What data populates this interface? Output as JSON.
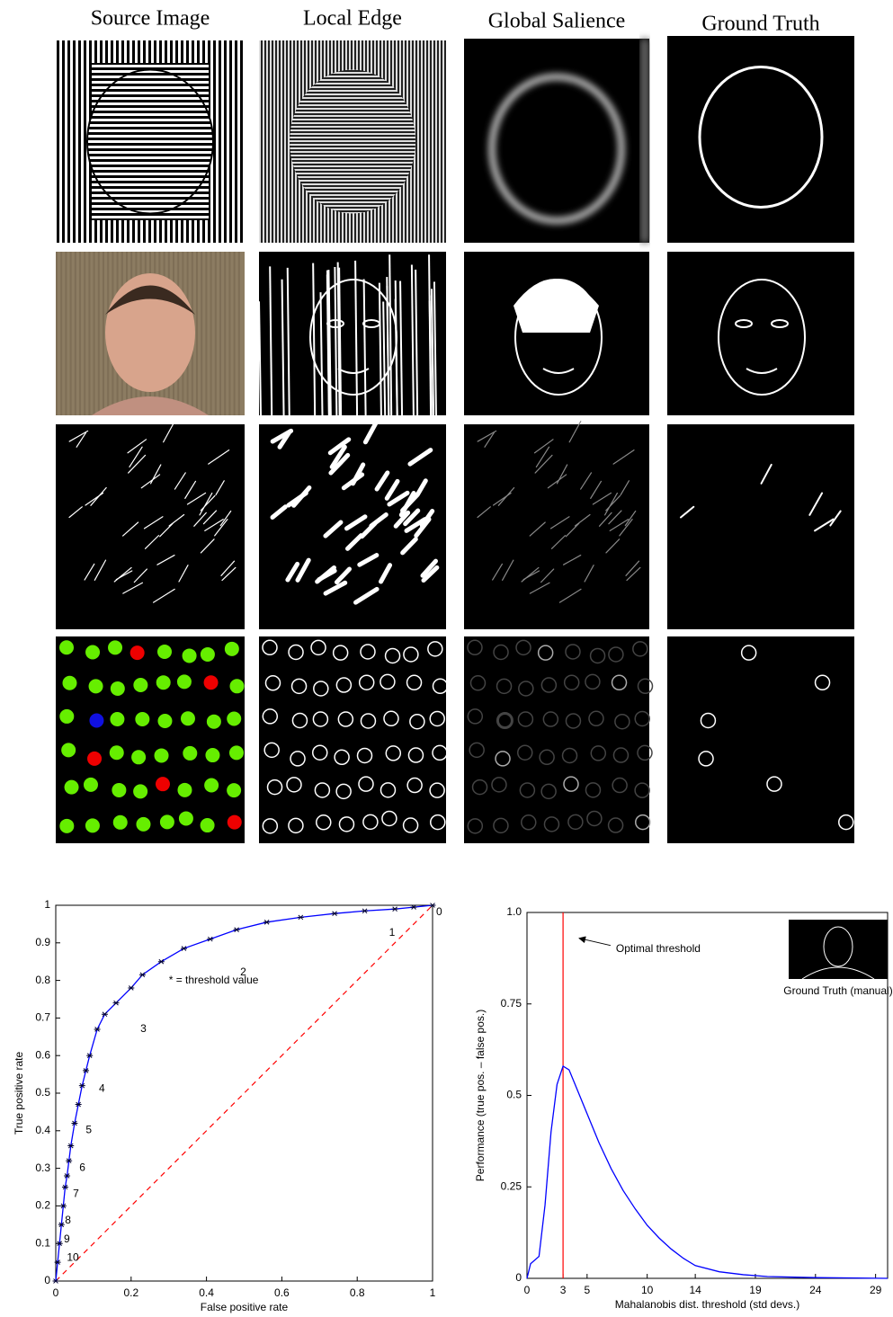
{
  "header": [
    "Source Image",
    "Local Edge",
    "Global Salience",
    "Ground Truth"
  ],
  "chart_data": [
    {
      "type": "line",
      "xlabel": "False positive rate",
      "ylabel": "True positive rate",
      "xlim": [
        0,
        1
      ],
      "xticks": [
        0,
        0.2,
        0.4,
        0.6,
        0.8,
        1
      ],
      "ylim": [
        0,
        1
      ],
      "yticks": [
        0,
        0.1,
        0.2,
        0.3,
        0.4,
        0.5,
        0.6,
        0.7,
        0.8,
        0.9,
        1
      ],
      "series": [
        {
          "color": "#0000ff",
          "x": [
            0,
            0.005,
            0.01,
            0.015,
            0.02,
            0.025,
            0.03,
            0.035,
            0.04,
            0.05,
            0.06,
            0.07,
            0.08,
            0.09,
            0.11,
            0.13,
            0.16,
            0.2,
            0.23,
            0.28,
            0.34,
            0.41,
            0.48,
            0.56,
            0.65,
            0.74,
            0.82,
            0.9,
            0.95,
            1
          ],
          "values": [
            0,
            0.05,
            0.1,
            0.15,
            0.2,
            0.25,
            0.28,
            0.32,
            0.36,
            0.42,
            0.47,
            0.52,
            0.56,
            0.6,
            0.67,
            0.71,
            0.74,
            0.78,
            0.815,
            0.85,
            0.885,
            0.91,
            0.935,
            0.955,
            0.968,
            0.978,
            0.985,
            0.99,
            0.995,
            1
          ]
        }
      ],
      "reference_line": {
        "color": "#ff0000",
        "dashed": true
      },
      "annotations": [
        {
          "text": "* = threshold value",
          "x": 0.3,
          "y": 0.8
        }
      ],
      "threshold_labels": [
        {
          "text": "0",
          "x": 1,
          "y": 1
        },
        {
          "text": "1",
          "x": 0.875,
          "y": 0.945
        },
        {
          "text": "2",
          "x": 0.48,
          "y": 0.84
        },
        {
          "text": "3",
          "x": 0.215,
          "y": 0.69
        },
        {
          "text": "4",
          "x": 0.105,
          "y": 0.53
        },
        {
          "text": "5",
          "x": 0.07,
          "y": 0.42
        },
        {
          "text": "6",
          "x": 0.053,
          "y": 0.32
        },
        {
          "text": "7",
          "x": 0.036,
          "y": 0.25
        },
        {
          "text": "8",
          "x": 0.015,
          "y": 0.18
        },
        {
          "text": "9",
          "x": 0.012,
          "y": 0.13
        },
        {
          "text": "10",
          "x": 0.02,
          "y": 0.08
        }
      ]
    },
    {
      "type": "line",
      "xlabel": "Mahalanobis dist. threshold (std devs.)",
      "ylabel": "Performance (true pos. – false pos.)",
      "xlim": [
        0,
        30
      ],
      "xticks": [
        0,
        3,
        5,
        10,
        14,
        19,
        24,
        29
      ],
      "ylim": [
        0,
        1
      ],
      "yticks": [
        0,
        0.25,
        0.5,
        0.75,
        {
          "value": 1,
          "label": "1.0"
        }
      ],
      "series": [
        {
          "color": "#0000ff",
          "x": [
            0,
            0.3,
            1,
            1.5,
            2,
            2.5,
            3,
            3.5,
            4,
            5,
            6,
            7,
            8,
            9,
            10,
            11,
            12,
            13,
            14,
            16,
            18,
            20,
            24,
            30
          ],
          "values": [
            0,
            0.04,
            0.06,
            0.2,
            0.4,
            0.53,
            0.58,
            0.57,
            0.53,
            0.45,
            0.37,
            0.3,
            0.24,
            0.19,
            0.145,
            0.11,
            0.08,
            0.055,
            0.035,
            0.018,
            0.01,
            0.005,
            0.002,
            0
          ]
        }
      ],
      "vline": {
        "x": 3,
        "color": "#ff0000"
      },
      "annotations": [
        {
          "text": "Optimal threshold",
          "x": 7.4,
          "y": 0.9
        }
      ],
      "inset_caption": "Ground Truth (manual)"
    }
  ]
}
